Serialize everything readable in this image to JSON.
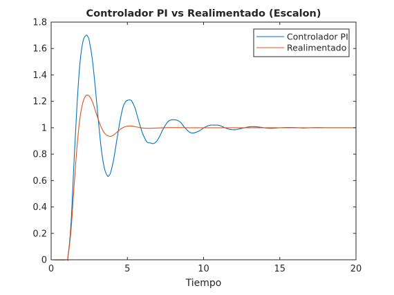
{
  "chart_data": {
    "type": "line",
    "title": "Controlador PI vs Realimentado (Escalon)",
    "xlabel": "Tiempo",
    "ylabel": "",
    "xlim": [
      0,
      20
    ],
    "ylim": [
      0,
      1.8
    ],
    "xticks": [
      0,
      5,
      10,
      15,
      20
    ],
    "yticks": [
      0,
      0.2,
      0.4,
      0.6,
      0.8,
      1,
      1.2,
      1.4,
      1.6,
      1.8
    ],
    "xtick_labels": [
      "0",
      "5",
      "10",
      "15",
      "20"
    ],
    "ytick_labels": [
      "0",
      "0.2",
      "0.4",
      "0.6",
      "0.8",
      "1",
      "1.2",
      "1.4",
      "1.6",
      "1.8"
    ],
    "grid": false,
    "legend_position": "top-right",
    "series": [
      {
        "name": "Controlador PI",
        "color": "#0072BD",
        "x": [
          0,
          1,
          1.1,
          1.3,
          1.5,
          1.7,
          1.9,
          2.1,
          2.3,
          2.4,
          2.5,
          2.7,
          2.9,
          3.1,
          3.3,
          3.5,
          3.7,
          3.8,
          3.9,
          4.1,
          4.3,
          4.5,
          4.7,
          4.9,
          5.1,
          5.2,
          5.3,
          5.5,
          5.7,
          5.9,
          6.1,
          6.3,
          6.5,
          6.7,
          6.9,
          7.1,
          7.3,
          7.5,
          7.7,
          7.9,
          8.1,
          8.3,
          8.5,
          8.7,
          8.9,
          9.1,
          9.3,
          9.5,
          9.7,
          9.9,
          10.1,
          10.3,
          10.5,
          10.7,
          10.9,
          11.1,
          11.3,
          11.5,
          11.7,
          11.9,
          12.1,
          12.3,
          12.5,
          12.7,
          12.9,
          13.1,
          13.3,
          13.5,
          13.7,
          13.9,
          14.1,
          14.3,
          14.5,
          14.7,
          14.9,
          15.5,
          16,
          16.5,
          17,
          17.5,
          18,
          18.5,
          19,
          19.5,
          20
        ],
        "y": [
          0,
          0,
          0.02,
          0.27,
          0.74,
          1.18,
          1.5,
          1.66,
          1.7,
          1.69,
          1.66,
          1.52,
          1.3,
          1.05,
          0.83,
          0.69,
          0.634,
          0.64,
          0.66,
          0.76,
          0.9,
          1.04,
          1.15,
          1.2,
          1.21,
          1.21,
          1.2,
          1.15,
          1.07,
          0.99,
          0.93,
          0.89,
          0.885,
          0.88,
          0.895,
          0.93,
          0.98,
          1.02,
          1.05,
          1.06,
          1.06,
          1.055,
          1.04,
          1.01,
          0.985,
          0.965,
          0.96,
          0.965,
          0.975,
          0.99,
          1.005,
          1.015,
          1.02,
          1.02,
          1.02,
          1.015,
          1.005,
          0.995,
          0.988,
          0.985,
          0.985,
          0.99,
          0.995,
          1.0,
          1.005,
          1.008,
          1.008,
          1.007,
          1.004,
          1.001,
          0.998,
          0.996,
          0.996,
          0.997,
          0.999,
          1.002,
          1.001,
          0.998,
          1.0,
          1.001,
          1.0,
          1.0,
          1.0,
          1.0,
          1.0
        ]
      },
      {
        "name": "Realimentado",
        "color": "#D95319",
        "x": [
          0,
          1,
          1.1,
          1.3,
          1.5,
          1.7,
          1.9,
          2.1,
          2.3,
          2.4,
          2.5,
          2.7,
          2.9,
          3.1,
          3.3,
          3.5,
          3.7,
          3.9,
          4.1,
          4.3,
          4.5,
          4.7,
          4.9,
          5.1,
          5.3,
          5.5,
          5.7,
          5.9,
          6.1,
          6.3,
          6.5,
          6.7,
          6.9,
          7.5,
          8,
          9,
          10,
          12,
          15,
          20
        ],
        "y": [
          0,
          0,
          0.02,
          0.22,
          0.55,
          0.86,
          1.08,
          1.2,
          1.245,
          1.245,
          1.24,
          1.2,
          1.13,
          1.06,
          1.0,
          0.96,
          0.94,
          0.935,
          0.945,
          0.965,
          0.985,
          1.0,
          1.01,
          1.013,
          1.012,
          1.008,
          1.004,
          1.0,
          0.997,
          0.996,
          0.996,
          0.997,
          0.998,
          1.0,
          1.001,
          1.0,
          1.0,
          1.0,
          1.0,
          1.0
        ]
      }
    ]
  }
}
